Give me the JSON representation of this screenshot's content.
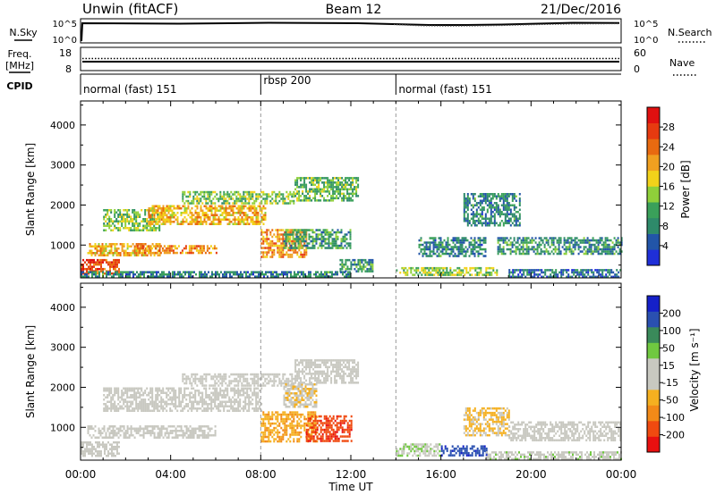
{
  "header": {
    "station": "Unwin (fitACF)",
    "beam": "Beam 12",
    "date": "21/Dec/2016"
  },
  "nsky_panel": {
    "left_label": "N.Sky",
    "right_label": "N.Search",
    "left_ticks": [
      "10^5",
      "10^0"
    ],
    "right_ticks": [
      "10^5",
      "10^0"
    ],
    "legend_style": "dotted"
  },
  "freq_panel": {
    "left_label_1": "Freq.",
    "left_label_2": "[MHz]",
    "right_label": "Nave",
    "left_ticks": [
      "18",
      "8"
    ],
    "right_ticks": [
      "60",
      "0"
    ],
    "legend_style": "dotted"
  },
  "cpid_panel": {
    "label": "CPID",
    "modes": [
      {
        "name": "normal (fast) 151",
        "start_hour": 0
      },
      {
        "name": "rbsp 200",
        "start_hour": 8
      },
      {
        "name": "normal (fast) 151",
        "start_hour": 14
      }
    ]
  },
  "colors": {
    "power_scale": [
      "#1f2fd8",
      "#2255a8",
      "#2e8a6a",
      "#3aa05a",
      "#8fd03a",
      "#f2d21a",
      "#f0a020",
      "#e86a10",
      "#e63a10",
      "#e01010"
    ],
    "velocity_scale": [
      "#e81010",
      "#f04a10",
      "#f28a18",
      "#f5b020",
      "#c8c8c0",
      "#c8c8c0",
      "#70c840",
      "#3a8a5a",
      "#2a50b0",
      "#1520c8"
    ],
    "gray": "#c8c8c0"
  },
  "chart_data": [
    {
      "type": "heatmap",
      "name": "power",
      "xlabel": "",
      "ylabel": "Slant Range [km]",
      "xlim": [
        0,
        24
      ],
      "ylim": [
        180,
        4600
      ],
      "yticks": [
        1000,
        2000,
        3000,
        4000
      ],
      "colorbar": {
        "label": "Power [dB]",
        "ticks": [
          "4",
          "8",
          "12",
          "16",
          "20",
          "24",
          "28"
        ],
        "range": [
          0,
          32
        ]
      },
      "regions": [
        {
          "t0": 0.0,
          "t1": 1.7,
          "r0": 300,
          "r1": 650,
          "value": 26
        },
        {
          "t0": 0.3,
          "t1": 3.5,
          "r0": 750,
          "r1": 1050,
          "value": 20
        },
        {
          "t0": 2.5,
          "t1": 6.0,
          "r0": 800,
          "r1": 1000,
          "value": 22
        },
        {
          "t0": 1.0,
          "t1": 3.5,
          "r0": 1350,
          "r1": 1900,
          "value": 14
        },
        {
          "t0": 3.0,
          "t1": 8.2,
          "r0": 1500,
          "r1": 2000,
          "value": 20
        },
        {
          "t0": 4.5,
          "t1": 9.5,
          "r0": 2050,
          "r1": 2350,
          "value": 14
        },
        {
          "t0": 8.0,
          "t1": 10.0,
          "r0": 700,
          "r1": 1400,
          "value": 22
        },
        {
          "t0": 9.0,
          "t1": 12.0,
          "r0": 900,
          "r1": 1400,
          "value": 10
        },
        {
          "t0": 9.5,
          "t1": 12.3,
          "r0": 2100,
          "r1": 2700,
          "value": 12
        },
        {
          "t0": 11.5,
          "t1": 13.0,
          "r0": 350,
          "r1": 650,
          "value": 10
        },
        {
          "t0": 14.0,
          "t1": 18.5,
          "r0": 250,
          "r1": 450,
          "value": 14
        },
        {
          "t0": 15.0,
          "t1": 18.0,
          "r0": 700,
          "r1": 1200,
          "value": 8
        },
        {
          "t0": 18.5,
          "t1": 24.0,
          "r0": 800,
          "r1": 1200,
          "value": 9
        },
        {
          "t0": 17.0,
          "t1": 19.5,
          "r0": 1500,
          "r1": 2300,
          "value": 8
        },
        {
          "t0": 19.0,
          "t1": 24.0,
          "r0": 200,
          "r1": 400,
          "value": 6
        },
        {
          "t0": 0.0,
          "t1": 12.0,
          "r0": 200,
          "r1": 350,
          "value": 8
        }
      ]
    },
    {
      "type": "heatmap",
      "name": "velocity",
      "xlabel": "Time UT",
      "ylabel": "Slant Range [km]",
      "xlim": [
        0,
        24
      ],
      "ylim": [
        180,
        4600
      ],
      "yticks": [
        1000,
        2000,
        3000,
        4000
      ],
      "xticks": [
        "00:00",
        "04:00",
        "08:00",
        "12:00",
        "16:00",
        "20:00",
        "00:00"
      ],
      "colorbar": {
        "label": "Velocity [m s⁻¹]",
        "ticks": [
          "200",
          "100",
          "50",
          "15",
          "-15",
          "-50",
          "-100",
          "-200"
        ],
        "range": [
          -250,
          250
        ]
      },
      "regions": [
        {
          "t0": 0.0,
          "t1": 1.7,
          "r0": 300,
          "r1": 650,
          "value": 0
        },
        {
          "t0": 0.3,
          "t1": 6.0,
          "r0": 750,
          "r1": 1050,
          "value": 0
        },
        {
          "t0": 1.0,
          "t1": 8.0,
          "r0": 1400,
          "r1": 2000,
          "value": 0
        },
        {
          "t0": 4.5,
          "t1": 9.5,
          "r0": 2050,
          "r1": 2350,
          "value": 0
        },
        {
          "t0": 8.0,
          "t1": 10.5,
          "r0": 650,
          "r1": 1400,
          "value": -90
        },
        {
          "t0": 10.0,
          "t1": 12.0,
          "r0": 650,
          "r1": 1300,
          "value": -180
        },
        {
          "t0": 9.0,
          "t1": 10.5,
          "r0": 1500,
          "r1": 2100,
          "value": -40
        },
        {
          "t0": 9.5,
          "t1": 12.3,
          "r0": 2100,
          "r1": 2700,
          "value": 0
        },
        {
          "t0": 14.0,
          "t1": 16.0,
          "r0": 300,
          "r1": 600,
          "value": 40
        },
        {
          "t0": 16.0,
          "t1": 18.0,
          "r0": 300,
          "r1": 550,
          "value": 180
        },
        {
          "t0": 17.0,
          "t1": 19.0,
          "r0": 800,
          "r1": 1500,
          "value": -60
        },
        {
          "t0": 19.0,
          "t1": 24.0,
          "r0": 650,
          "r1": 1150,
          "value": 0
        },
        {
          "t0": 18.0,
          "t1": 24.0,
          "r0": 200,
          "r1": 400,
          "value": 30
        }
      ]
    }
  ]
}
